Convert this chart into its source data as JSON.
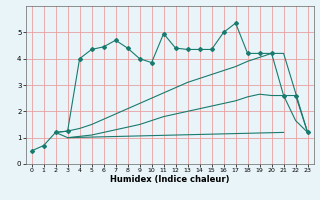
{
  "title": "",
  "xlabel": "Humidex (Indice chaleur)",
  "background_color": "#e8f4f8",
  "grid_color": "#e8a0a0",
  "line_color": "#1a7a6e",
  "xlim": [
    -0.5,
    23.5
  ],
  "ylim": [
    0,
    6
  ],
  "xticks": [
    0,
    1,
    2,
    3,
    4,
    5,
    6,
    7,
    8,
    9,
    10,
    11,
    12,
    13,
    14,
    15,
    16,
    17,
    18,
    19,
    20,
    21,
    22,
    23
  ],
  "yticks": [
    0,
    1,
    2,
    3,
    4,
    5
  ],
  "line1_x": [
    0,
    1,
    2,
    3,
    4,
    5,
    6,
    7,
    8,
    9,
    10,
    11,
    12,
    13,
    14,
    15,
    16,
    17,
    18,
    19,
    20,
    21,
    22,
    23
  ],
  "line1_y": [
    0.5,
    0.7,
    1.2,
    1.25,
    4.0,
    4.35,
    4.45,
    4.7,
    4.4,
    4.0,
    3.85,
    4.95,
    4.4,
    4.35,
    4.35,
    4.35,
    5.0,
    5.35,
    4.2,
    4.2,
    4.2,
    2.6,
    2.6,
    1.2
  ],
  "line2_x": [
    2,
    3,
    4,
    5,
    6,
    7,
    8,
    9,
    10,
    11,
    12,
    13,
    14,
    15,
    16,
    17,
    18,
    19,
    20,
    21,
    22,
    23
  ],
  "line2_y": [
    1.2,
    1.0,
    1.05,
    1.1,
    1.2,
    1.3,
    1.4,
    1.5,
    1.65,
    1.8,
    1.9,
    2.0,
    2.1,
    2.2,
    2.3,
    2.4,
    2.55,
    2.65,
    2.6,
    2.6,
    1.65,
    1.2
  ],
  "line3_x": [
    2,
    3,
    4,
    5,
    6,
    7,
    8,
    9,
    10,
    11,
    12,
    13,
    14,
    15,
    16,
    17,
    18,
    19,
    20,
    21,
    23
  ],
  "line3_y": [
    1.2,
    1.25,
    1.35,
    1.5,
    1.7,
    1.9,
    2.1,
    2.3,
    2.5,
    2.7,
    2.9,
    3.1,
    3.25,
    3.4,
    3.55,
    3.7,
    3.9,
    4.05,
    4.2,
    4.2,
    1.2
  ],
  "line4_x": [
    3,
    21
  ],
  "line4_y": [
    1.0,
    1.2
  ]
}
